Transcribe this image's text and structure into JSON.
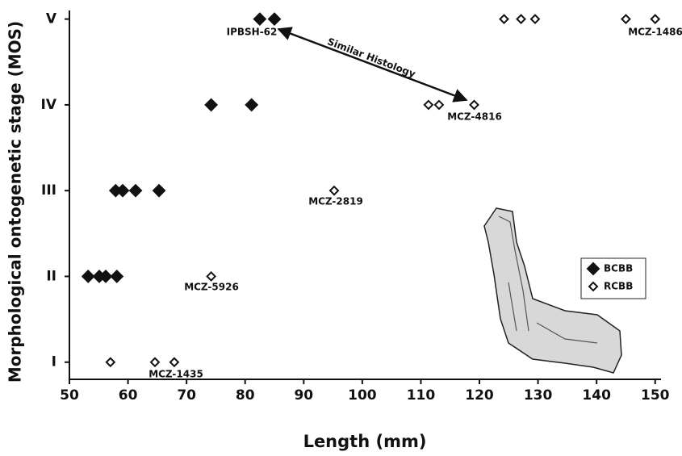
{
  "chart_data": {
    "type": "scatter",
    "x_label": "Length (mm)",
    "y_label": "Morphological ontogenetic stage (MOS)",
    "xlim": [
      50,
      151
    ],
    "xticks": [
      50,
      60,
      70,
      80,
      90,
      100,
      110,
      120,
      130,
      140,
      150
    ],
    "ylim": [
      0.8,
      5.1
    ],
    "yticks": [
      {
        "value": 1,
        "label": "I"
      },
      {
        "value": 2,
        "label": "II"
      },
      {
        "value": 3,
        "label": "III"
      },
      {
        "value": 4,
        "label": "IV"
      },
      {
        "value": 5,
        "label": "V"
      }
    ],
    "legend": "right",
    "series": [
      {
        "name": "BCBB",
        "color": "#111111",
        "marker": "filled",
        "x": [
          82.5,
          85,
          74.2,
          81.1,
          57.9,
          59.1,
          61.3,
          65.3,
          53.2,
          55.1,
          56.2,
          58.1
        ],
        "values": [
          5,
          5,
          4,
          4,
          3,
          3,
          3,
          3,
          2,
          2,
          2,
          2
        ]
      },
      {
        "name": "RCBB",
        "color": "#111111",
        "marker": "open",
        "x": [
          124.2,
          127.1,
          129.5,
          145,
          150,
          111.3,
          113.1,
          119.1,
          95.2,
          74.2,
          57,
          64.6,
          67.9
        ],
        "values": [
          5,
          5,
          5,
          5,
          5,
          4,
          4,
          4,
          3,
          2,
          1,
          1,
          1
        ]
      }
    ],
    "annotations": [
      "IPBSH-62",
      "MCZ-1486",
      "MCZ-4816",
      "MCZ-2819",
      "MCZ-5926",
      "MCZ-1435",
      "Similar Histology"
    ]
  }
}
